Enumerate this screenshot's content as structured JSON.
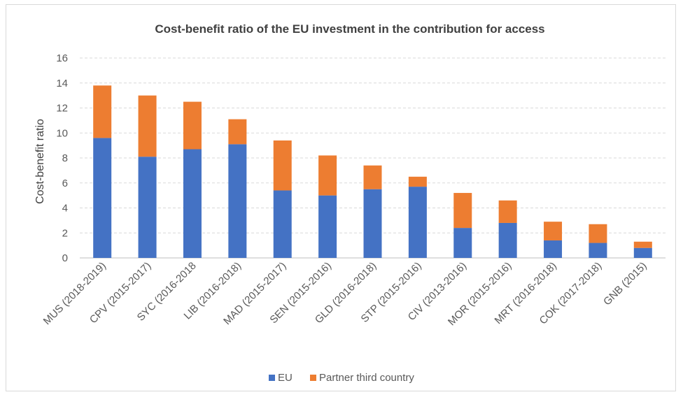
{
  "chart_data": {
    "type": "bar",
    "stacked": true,
    "title": "Cost-benefit ratio of the  EU investment in the contribution for access",
    "xlabel": "",
    "ylabel": "Cost-benefit ratio",
    "ylim": [
      0,
      16
    ],
    "yticks": [
      0,
      2,
      4,
      6,
      8,
      10,
      12,
      14,
      16
    ],
    "grid": true,
    "legend_position": "bottom",
    "categories": [
      "MUS (2018-2019)",
      "CPV (2015-2017)",
      "SYC (2016-2018",
      "LIB (2016-2018)",
      "MAD (2015-2017)",
      "SEN (2015-2016)",
      "GLD (2016-2018)",
      "STP (2015-2016)",
      "CIV (2013-2016)",
      "MOR (2015-2016)",
      "MRT (2016-2018)",
      "COK (2017-2018)",
      "GNB (2015)"
    ],
    "series": [
      {
        "name": "EU",
        "color": "#4472c4",
        "values": [
          9.6,
          8.1,
          8.7,
          9.1,
          5.4,
          5.0,
          5.5,
          5.7,
          2.4,
          2.8,
          1.4,
          1.2,
          0.8
        ]
      },
      {
        "name": "Partner third country",
        "color": "#ed7d31",
        "values": [
          4.2,
          4.9,
          3.8,
          2.0,
          4.0,
          3.2,
          1.9,
          0.8,
          2.8,
          1.8,
          1.5,
          1.5,
          0.5
        ]
      }
    ]
  }
}
